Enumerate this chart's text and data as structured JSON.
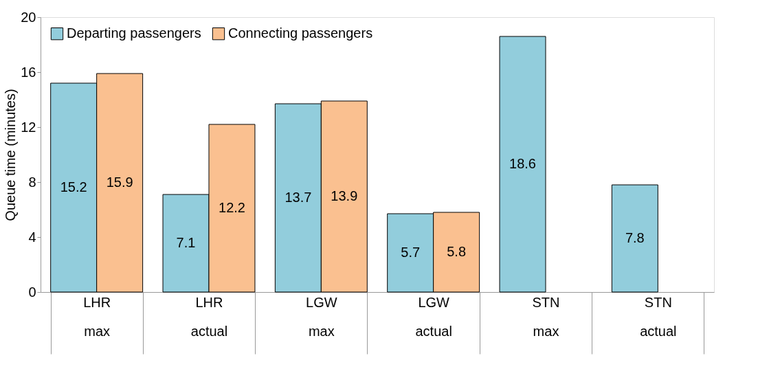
{
  "chart_data": {
    "type": "bar",
    "ylabel": "Queue time (minutes)",
    "categories": [
      "LHR\nmax",
      "LHR\nactual",
      "LGW\nmax",
      "LGW\nactual",
      "STN\nmax",
      "STN\nactual"
    ],
    "series": [
      {
        "name": "Departing passengers",
        "color": "#92cddc",
        "values": [
          15.2,
          7.1,
          13.7,
          5.7,
          18.6,
          7.8
        ]
      },
      {
        "name": "Connecting passengers",
        "color": "#fac090",
        "values": [
          15.9,
          12.2,
          13.9,
          5.8,
          null,
          null
        ]
      }
    ],
    "ylim": [
      0,
      20
    ],
    "yticks": [
      0,
      4,
      8,
      12,
      16,
      20
    ],
    "data_labels": true,
    "grid": false,
    "legend": "top left"
  }
}
